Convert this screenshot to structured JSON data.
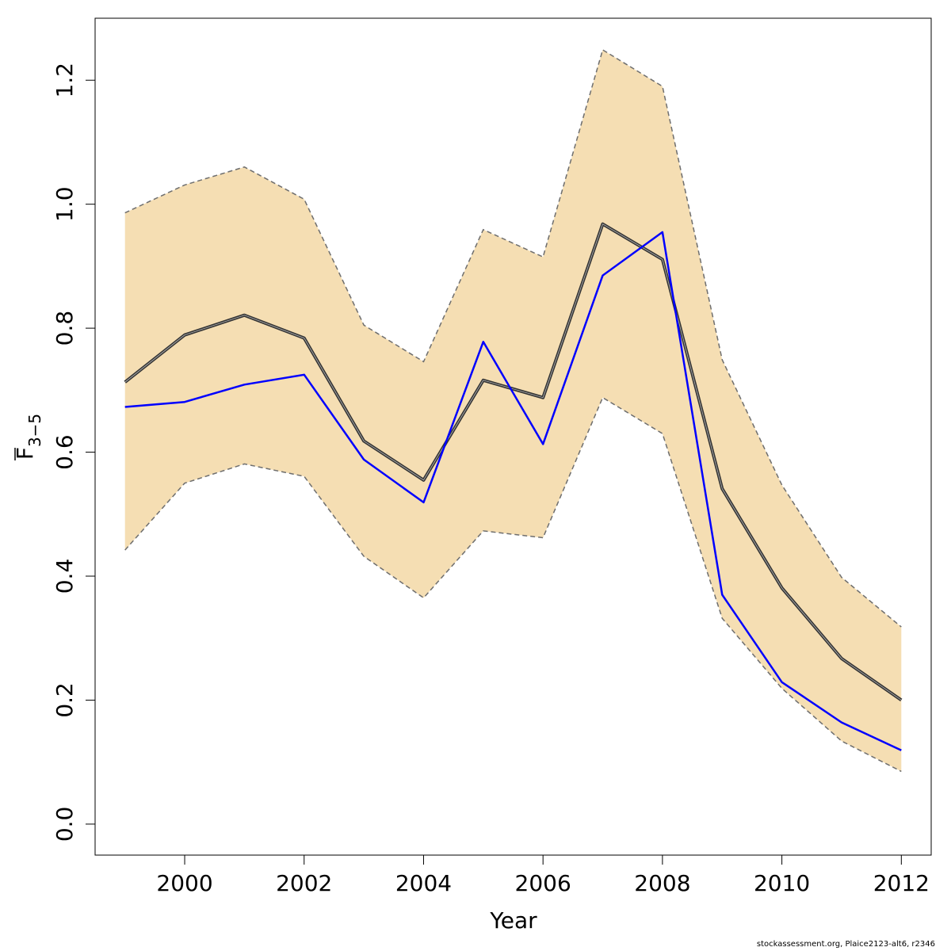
{
  "chart_data": {
    "type": "line",
    "xlabel": "Year",
    "ylabel_main": "F",
    "ylabel_subscript": "3−5",
    "xlim": [
      1998.5,
      2012.5
    ],
    "ylim": [
      -0.05,
      1.3
    ],
    "x_ticks": [
      2000,
      2002,
      2004,
      2006,
      2008,
      2010,
      2012
    ],
    "x_tick_labels": [
      "2000",
      "2002",
      "2004",
      "2006",
      "2008",
      "2010",
      "2012"
    ],
    "y_ticks": [
      0.0,
      0.2,
      0.4,
      0.6,
      0.8,
      1.0,
      1.2
    ],
    "y_tick_labels": [
      "0.0",
      "0.2",
      "0.4",
      "0.6",
      "0.8",
      "1.0",
      "1.2"
    ],
    "x": [
      1999,
      2000,
      2001,
      2002,
      2003,
      2004,
      2005,
      2006,
      2007,
      2008,
      2009,
      2010,
      2011,
      2012
    ],
    "series": [
      {
        "role": "estimate",
        "color": "#333333",
        "values": [
          0.713,
          0.789,
          0.821,
          0.784,
          0.618,
          0.555,
          0.716,
          0.688,
          0.968,
          0.911,
          0.541,
          0.381,
          0.267,
          0.2
        ]
      },
      {
        "role": "observed",
        "color": "#0000ff",
        "values": [
          0.673,
          0.681,
          0.709,
          0.725,
          0.588,
          0.519,
          0.778,
          0.613,
          0.885,
          0.955,
          0.37,
          0.229,
          0.164,
          0.119
        ]
      }
    ],
    "band": {
      "color": "#f5deb3",
      "border_color": "#6e6e6e",
      "lower": [
        0.442,
        0.55,
        0.581,
        0.561,
        0.432,
        0.365,
        0.473,
        0.462,
        0.688,
        0.63,
        0.332,
        0.219,
        0.134,
        0.085
      ],
      "upper": [
        0.986,
        1.031,
        1.06,
        1.008,
        0.805,
        0.746,
        0.959,
        0.915,
        1.249,
        1.19,
        0.749,
        0.547,
        0.398,
        0.318
      ]
    },
    "grid": false,
    "legend": "none"
  },
  "footer": {
    "text": "stockassessment.org, Plaice2123-alt6, r2346"
  }
}
